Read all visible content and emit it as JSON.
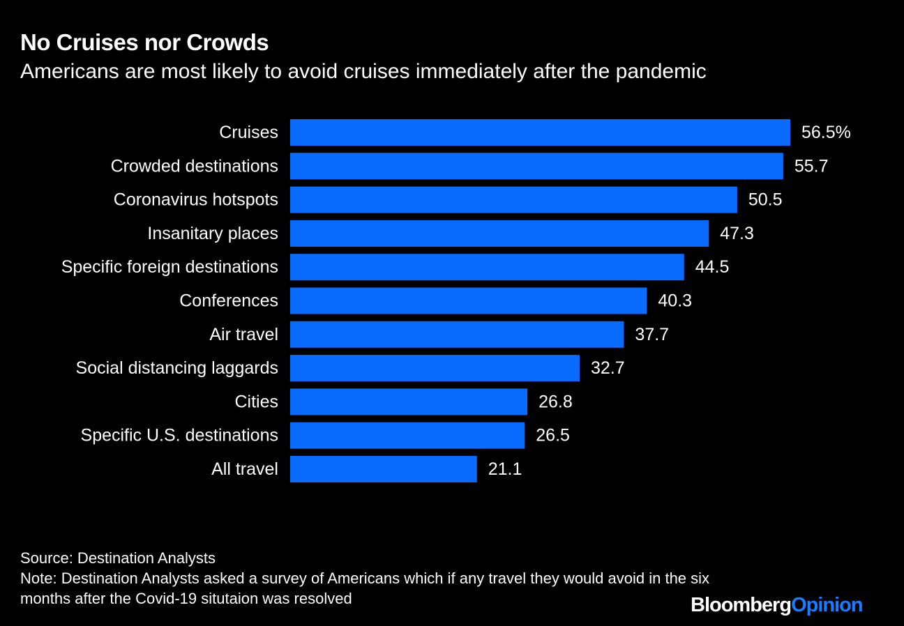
{
  "chart_data": {
    "type": "bar",
    "orientation": "horizontal",
    "title": "No Cruises nor Crowds",
    "subtitle": "Americans are most likely to avoid cruises immediately after the pandemic",
    "categories": [
      "Cruises",
      "Crowded destinations",
      "Coronavirus hotspots",
      "Insanitary places",
      "Specific foreign destinations",
      "Conferences",
      "Air travel",
      "Social distancing laggards",
      "Cities",
      "Specific U.S. destinations",
      "All travel"
    ],
    "values": [
      56.5,
      55.7,
      50.5,
      47.3,
      44.5,
      40.3,
      37.7,
      32.7,
      26.8,
      26.5,
      21.1
    ],
    "value_labels": [
      "56.5%",
      "55.7",
      "50.5",
      "47.3",
      "44.5",
      "40.3",
      "37.7",
      "32.7",
      "26.8",
      "26.5",
      "21.1"
    ],
    "unit": "%",
    "xlabel": "",
    "ylabel": "",
    "xlim": [
      0,
      56.5
    ],
    "grid": false,
    "bar_color": "#0a6cff"
  },
  "footer": {
    "source": "Source: Destination Analysts",
    "note": "Note: Destination Analysts asked a survey of Americans which if any travel they would avoid in the six months after the Covid-19 situtaion was resolved"
  },
  "logo": {
    "part1": "Bloomberg",
    "part2": "Opinion"
  }
}
